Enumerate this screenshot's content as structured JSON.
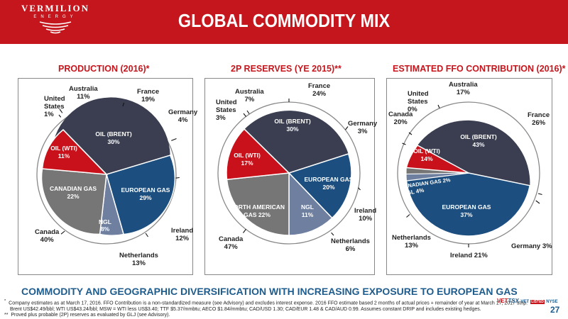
{
  "header": {
    "logo_line1": "VERMILION",
    "logo_line2": "ENERGY",
    "title": "GLOBAL COMMODITY MIX"
  },
  "panels": [
    {
      "title": "PRODUCTION (2016)*",
      "slices": [
        {
          "label": "OIL (BRENT)",
          "value": "30%"
        },
        {
          "label": "EUROPEAN GAS",
          "value": "29%"
        },
        {
          "label": "NGL",
          "value": "8%"
        },
        {
          "label": "CANADIAN GAS",
          "value": "22%"
        },
        {
          "label": "OIL (WTI)",
          "value": "11%"
        }
      ],
      "geo": [
        {
          "name": "France",
          "value": "19%"
        },
        {
          "name": "Germany",
          "value": "4%"
        },
        {
          "name": "Ireland",
          "value": "12%"
        },
        {
          "name": "Netherlands",
          "value": "13%"
        },
        {
          "name": "Canada",
          "value": "40%"
        },
        {
          "name": "United States",
          "value": "1%"
        },
        {
          "name": "Australia",
          "value": "11%"
        }
      ]
    },
    {
      "title": "2P RESERVES (YE 2015)**",
      "slices": [
        {
          "label": "OIL (BRENT)",
          "value": "30%"
        },
        {
          "label": "EUROPEAN GAS",
          "value": "20%"
        },
        {
          "label": "NGL",
          "value": "11%"
        },
        {
          "label": "NORTH AMERICAN GAS",
          "value": "22%"
        },
        {
          "label": "OIL (WTI)",
          "value": "17%"
        }
      ],
      "geo": [
        {
          "name": "France",
          "value": "24%"
        },
        {
          "name": "Germany",
          "value": "3%"
        },
        {
          "name": "Ireland",
          "value": "10%"
        },
        {
          "name": "Netherlands",
          "value": "6%"
        },
        {
          "name": "Canada",
          "value": "47%"
        },
        {
          "name": "United States",
          "value": "3%"
        },
        {
          "name": "Australia",
          "value": "7%"
        }
      ]
    },
    {
      "title": "ESTIMATED FFO CONTRIBUTION (2016)*",
      "slices": [
        {
          "label": "OIL (BRENT)",
          "value": "43%"
        },
        {
          "label": "EUROPEAN GAS",
          "value": "37%"
        },
        {
          "label": "NGL",
          "value": "4%"
        },
        {
          "label": "CANADIAN GAS",
          "value": "2%"
        },
        {
          "label": "OIL (WTI)",
          "value": "14%"
        }
      ],
      "geo": [
        {
          "name": "France",
          "value": "26%"
        },
        {
          "name": "Germany",
          "value": "3%"
        },
        {
          "name": "Ireland",
          "value": "21%"
        },
        {
          "name": "Netherlands",
          "value": "13%"
        },
        {
          "name": "Canada",
          "value": "20%"
        },
        {
          "name": "United States",
          "value": "0%"
        },
        {
          "name": "Australia",
          "value": "17%"
        }
      ]
    }
  ],
  "colors": {
    "brand_red": "#c4161c",
    "oil_brent": "#3a3e50",
    "european_gas": "#1c4f80",
    "ngl": "#6f7fa0",
    "canadian_gas": "#767676",
    "oil_wti": "#c8111a",
    "subtitle_blue": "#1f5c8e"
  },
  "subtitle": "COMMODITY AND GEOGRAPHIC DIVERSIFICATION WITH INCREASING EXPOSURE TO EUROPEAN GAS",
  "footnotes": [
    "Company estimates as at March 17, 2016. FFO Contribution is a non-standardized measure (see Advisory) and excludes interest expense. 2016 FFO estimate based 2 months of actual prices + remainder of year at March 17, 2017 strip:",
    "Brent US$42.49/bbl; WTI US$43.24/bbl; MSW = WTI less US$3.40; TTF $5.37/mmbtu; AECO $1.84/mmbtu; CAD/USD 1.30; CAD/EUR 1.48 & CAD/AUD 0.99. Assumes constant DRIP and includes existing hedges.",
    "Proved plus probable (2P) reserves as evaluated by GLJ (see Advisory)."
  ],
  "footnote_marks": [
    "*",
    "**"
  ],
  "ticker": {
    "vet": "VET",
    "tsx": "TSX",
    "nyse": "NYSE",
    "listed": "LISTED"
  },
  "page_number": "27"
}
